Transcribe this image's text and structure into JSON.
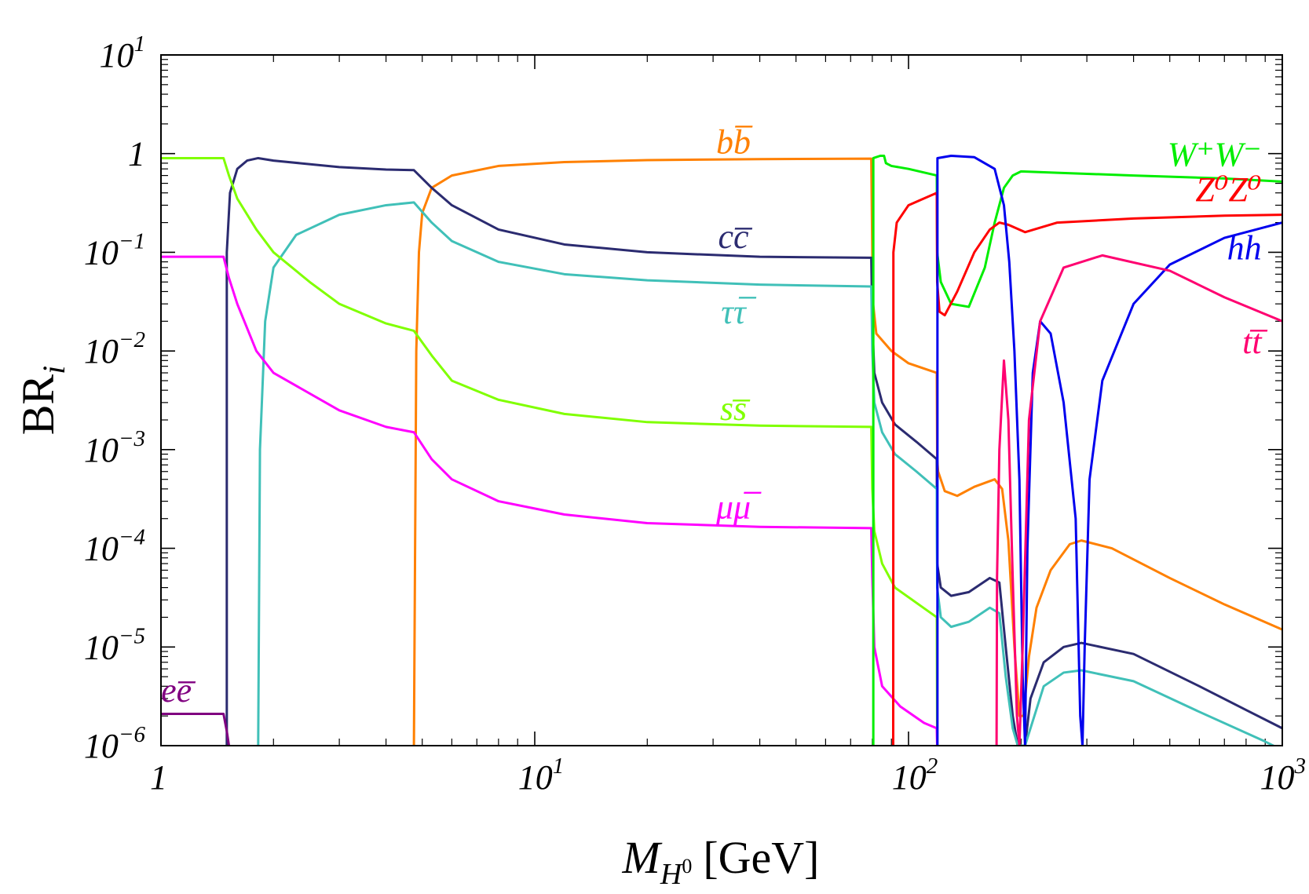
{
  "chart_data": {
    "type": "line",
    "xscale": "log",
    "yscale": "log",
    "xlim": [
      1,
      1000
    ],
    "ylim": [
      1e-06,
      10
    ],
    "xlabel": "M",
    "xlabel_sub": "H",
    "xlabel_supsub": "0",
    "xlabel_unit": "[GeV]",
    "ylabel": "BR",
    "ylabel_sub": "i",
    "x_ticks": [
      {
        "value": 1,
        "base": "1",
        "exp": ""
      },
      {
        "value": 10,
        "base": "10",
        "exp": "1"
      },
      {
        "value": 100,
        "base": "10",
        "exp": "2"
      },
      {
        "value": 1000,
        "base": "10",
        "exp": "3"
      }
    ],
    "y_ticks": [
      {
        "value": 10,
        "base": "10",
        "exp": "1"
      },
      {
        "value": 1,
        "base": "1",
        "exp": ""
      },
      {
        "value": 0.1,
        "base": "10",
        "exp": "−1"
      },
      {
        "value": 0.01,
        "base": "10",
        "exp": "−2"
      },
      {
        "value": 0.001,
        "base": "10",
        "exp": "−3"
      },
      {
        "value": 0.0001,
        "base": "10",
        "exp": "−4"
      },
      {
        "value": 1e-05,
        "base": "10",
        "exp": "−5"
      },
      {
        "value": 1e-06,
        "base": "10",
        "exp": "−6"
      }
    ],
    "series": [
      {
        "name": "bb",
        "label": "bb̅",
        "label_base": "bb",
        "label_pos": [
          34,
          1.0
        ],
        "color": "#ff8000",
        "points": [
          [
            4.75,
            1e-06
          ],
          [
            4.82,
            0.01
          ],
          [
            4.9,
            0.1
          ],
          [
            5.0,
            0.25
          ],
          [
            5.3,
            0.45
          ],
          [
            6,
            0.6
          ],
          [
            8,
            0.75
          ],
          [
            12,
            0.82
          ],
          [
            20,
            0.86
          ],
          [
            40,
            0.88
          ],
          [
            79.5,
            0.89
          ],
          [
            80.0,
            0.1
          ],
          [
            80.4,
            0.03
          ],
          [
            82,
            0.015
          ],
          [
            90,
            0.01
          ],
          [
            100,
            0.0075
          ],
          [
            119,
            0.006
          ],
          [
            119.3,
            0.0008
          ],
          [
            120,
            0.0006
          ],
          [
            125,
            0.00038
          ],
          [
            135,
            0.00034
          ],
          [
            150,
            0.00042
          ],
          [
            170,
            0.0005
          ],
          [
            178,
            0.0004
          ],
          [
            185,
            0.00012
          ],
          [
            192,
            1e-05
          ],
          [
            198,
            2e-06
          ],
          [
            203,
            2e-06
          ],
          [
            210,
            8e-06
          ],
          [
            220,
            2.5e-05
          ],
          [
            240,
            6e-05
          ],
          [
            270,
            0.00011
          ],
          [
            290,
            0.00012
          ],
          [
            350,
            0.0001
          ],
          [
            500,
            5e-05
          ],
          [
            700,
            2.7e-05
          ],
          [
            1000,
            1.5e-05
          ]
        ]
      },
      {
        "name": "cc",
        "label": "cc̅",
        "label_base": "cc",
        "label_pos": [
          34,
          0.11
        ],
        "color": "#2b2b70",
        "points": [
          [
            1.5,
            1e-06
          ],
          [
            1.5,
            0.1
          ],
          [
            1.53,
            0.4
          ],
          [
            1.6,
            0.7
          ],
          [
            1.7,
            0.85
          ],
          [
            1.82,
            0.9
          ],
          [
            2,
            0.85
          ],
          [
            3,
            0.73
          ],
          [
            4.0,
            0.69
          ],
          [
            4.75,
            0.68
          ],
          [
            5.3,
            0.45
          ],
          [
            6,
            0.3
          ],
          [
            8,
            0.17
          ],
          [
            12,
            0.12
          ],
          [
            20,
            0.1
          ],
          [
            40,
            0.09
          ],
          [
            79.5,
            0.088
          ],
          [
            80,
            0.02
          ],
          [
            81,
            0.006
          ],
          [
            85,
            0.003
          ],
          [
            92,
            0.0018
          ],
          [
            105,
            0.0012
          ],
          [
            119,
            0.0008
          ],
          [
            119.3,
            7e-05
          ],
          [
            122,
            4e-05
          ],
          [
            130,
            3.3e-05
          ],
          [
            145,
            3.6e-05
          ],
          [
            165,
            5e-05
          ],
          [
            175,
            4.5e-05
          ],
          [
            182,
            1e-05
          ],
          [
            190,
            2e-06
          ],
          [
            196,
            1e-06
          ],
          [
            205,
            1e-06
          ],
          [
            212,
            3e-06
          ],
          [
            230,
            7e-06
          ],
          [
            260,
            1e-05
          ],
          [
            290,
            1.1e-05
          ],
          [
            400,
            8.5e-06
          ],
          [
            600,
            4e-06
          ],
          [
            800,
            2.3e-06
          ],
          [
            1000,
            1.5e-06
          ]
        ]
      },
      {
        "name": "tautau",
        "label": "ττ̅",
        "label_base": "ττ",
        "label_pos": [
          34,
          0.019
        ],
        "color": "#40c0b8",
        "points": [
          [
            1.82,
            1e-06
          ],
          [
            1.84,
            0.001
          ],
          [
            1.9,
            0.02
          ],
          [
            2,
            0.07
          ],
          [
            2.3,
            0.15
          ],
          [
            3,
            0.24
          ],
          [
            4.0,
            0.3
          ],
          [
            4.75,
            0.32
          ],
          [
            5.3,
            0.2
          ],
          [
            6,
            0.13
          ],
          [
            8,
            0.08
          ],
          [
            12,
            0.06
          ],
          [
            20,
            0.052
          ],
          [
            40,
            0.047
          ],
          [
            79.5,
            0.045
          ],
          [
            80,
            0.01
          ],
          [
            81,
            0.003
          ],
          [
            85,
            0.0015
          ],
          [
            92,
            0.0009
          ],
          [
            105,
            0.0006
          ],
          [
            119,
            0.0004
          ],
          [
            119.3,
            4e-05
          ],
          [
            122,
            2e-05
          ],
          [
            130,
            1.6e-05
          ],
          [
            145,
            1.8e-05
          ],
          [
            165,
            2.5e-05
          ],
          [
            175,
            2.2e-05
          ],
          [
            182,
            5e-06
          ],
          [
            190,
            1.5e-06
          ],
          [
            196,
            1e-06
          ],
          [
            205,
            1e-06
          ],
          [
            212,
            1.5e-06
          ],
          [
            230,
            4e-06
          ],
          [
            260,
            5.5e-06
          ],
          [
            290,
            5.8e-06
          ],
          [
            400,
            4.5e-06
          ],
          [
            600,
            2.2e-06
          ],
          [
            900,
            1.1e-06
          ],
          [
            1000,
            9e-07
          ]
        ]
      },
      {
        "name": "ss",
        "label": "ss̅",
        "label_base": "ss",
        "label_pos": [
          34,
          0.002
        ],
        "color": "#80ff00",
        "points": [
          [
            1,
            0.9
          ],
          [
            1.47,
            0.9
          ],
          [
            1.52,
            0.6
          ],
          [
            1.6,
            0.35
          ],
          [
            1.8,
            0.17
          ],
          [
            2,
            0.1
          ],
          [
            2.5,
            0.05
          ],
          [
            3,
            0.03
          ],
          [
            4.0,
            0.019
          ],
          [
            4.75,
            0.016
          ],
          [
            5.3,
            0.009
          ],
          [
            6,
            0.005
          ],
          [
            8,
            0.0032
          ],
          [
            12,
            0.0023
          ],
          [
            20,
            0.0019
          ],
          [
            40,
            0.00175
          ],
          [
            79.5,
            0.0017
          ],
          [
            80,
            0.0004
          ],
          [
            81,
            0.00015
          ],
          [
            85,
            7e-05
          ],
          [
            92,
            4e-05
          ],
          [
            105,
            2.8e-05
          ],
          [
            119,
            2e-05
          ],
          [
            119.3,
            1e-06
          ]
        ]
      },
      {
        "name": "mumu",
        "label": "μμ̅",
        "label_base": "μμ",
        "label_pos": [
          34,
          0.0002
        ],
        "color": "#ff00ff",
        "points": [
          [
            1,
            0.09
          ],
          [
            1.47,
            0.09
          ],
          [
            1.52,
            0.055
          ],
          [
            1.6,
            0.03
          ],
          [
            1.8,
            0.01
          ],
          [
            2,
            0.006
          ],
          [
            3,
            0.0025
          ],
          [
            4.0,
            0.0017
          ],
          [
            4.75,
            0.0015
          ],
          [
            5.3,
            0.0008
          ],
          [
            6,
            0.0005
          ],
          [
            8,
            0.0003
          ],
          [
            12,
            0.00022
          ],
          [
            20,
            0.00018
          ],
          [
            40,
            0.000165
          ],
          [
            79.5,
            0.00016
          ],
          [
            80,
            5e-05
          ],
          [
            81,
            1e-05
          ],
          [
            85,
            4e-06
          ],
          [
            95,
            2.5e-06
          ],
          [
            110,
            1.7e-06
          ],
          [
            119,
            1.5e-06
          ],
          [
            119.3,
            1e-06
          ]
        ]
      },
      {
        "name": "ee",
        "label": "ee̅",
        "label_base": "ee",
        "label_pos": [
          1.1,
          2.8e-06
        ],
        "color": "#800080",
        "points": [
          [
            1,
            2.1e-06
          ],
          [
            1.47,
            2.1e-06
          ],
          [
            1.5,
            1.4e-06
          ],
          [
            1.52,
            1e-06
          ]
        ]
      },
      {
        "name": "WW",
        "label": "W⁺W⁻",
        "label_base": "W⁺W⁻",
        "label_pos": [
          880,
          0.75
        ],
        "color": "#00ee00",
        "points": [
          [
            80.5,
            1e-06
          ],
          [
            80.5,
            0.9
          ],
          [
            84,
            0.95
          ],
          [
            86,
            0.95
          ],
          [
            87,
            0.8
          ],
          [
            90,
            0.75
          ],
          [
            100,
            0.7
          ],
          [
            119,
            0.6
          ],
          [
            119.3,
            0.1
          ],
          [
            122,
            0.05
          ],
          [
            130,
            0.03
          ],
          [
            145,
            0.028
          ],
          [
            160,
            0.07
          ],
          [
            170,
            0.2
          ],
          [
            180,
            0.45
          ],
          [
            190,
            0.6
          ],
          [
            200,
            0.66
          ],
          [
            250,
            0.64
          ],
          [
            400,
            0.6
          ],
          [
            700,
            0.56
          ],
          [
            1000,
            0.52
          ]
        ]
      },
      {
        "name": "ZZ",
        "label": "Z⁰Z⁰",
        "label_base": "Z⁰Z⁰",
        "label_pos": [
          880,
          0.33
        ],
        "color": "#ff0000",
        "points": [
          [
            91,
            1e-06
          ],
          [
            91.1,
            0.1
          ],
          [
            93,
            0.2
          ],
          [
            100,
            0.3
          ],
          [
            119,
            0.4
          ],
          [
            119.3,
            0.05
          ],
          [
            121,
            0.025
          ],
          [
            125,
            0.023
          ],
          [
            135,
            0.04
          ],
          [
            150,
            0.1
          ],
          [
            165,
            0.17
          ],
          [
            175,
            0.2
          ],
          [
            185,
            0.19
          ],
          [
            205,
            0.16
          ],
          [
            250,
            0.2
          ],
          [
            400,
            0.22
          ],
          [
            700,
            0.235
          ],
          [
            1000,
            0.24
          ]
        ]
      },
      {
        "name": "hh",
        "label": "hh",
        "label_base": "hh",
        "label_pos": [
          880,
          0.085
        ],
        "color": "#0000ee",
        "points": [
          [
            119.5,
            1e-06
          ],
          [
            119.5,
            0.9
          ],
          [
            130,
            0.95
          ],
          [
            150,
            0.92
          ],
          [
            170,
            0.7
          ],
          [
            180,
            0.3
          ],
          [
            186,
            0.08
          ],
          [
            192,
            0.01
          ],
          [
            198,
            0.0005
          ],
          [
            202,
            5e-06
          ],
          [
            205,
            1e-06
          ],
          [
            208,
            0.0001
          ],
          [
            215,
            0.006
          ],
          [
            225,
            0.02
          ],
          [
            240,
            0.015
          ],
          [
            260,
            0.003
          ],
          [
            280,
            0.0002
          ],
          [
            288,
            2e-06
          ],
          [
            292,
            1e-06
          ],
          [
            296,
            1e-05
          ],
          [
            305,
            0.0005
          ],
          [
            330,
            0.005
          ],
          [
            400,
            0.03
          ],
          [
            500,
            0.075
          ],
          [
            700,
            0.14
          ],
          [
            1000,
            0.2
          ]
        ]
      },
      {
        "name": "tt",
        "label": "tt̅",
        "label_base": "tt",
        "label_pos": [
          880,
          0.0095
        ],
        "color": "#ff0070",
        "points": [
          [
            172,
            1e-06
          ],
          [
            172.5,
            5e-05
          ],
          [
            175,
            0.001
          ],
          [
            180,
            0.008
          ],
          [
            185,
            0.002
          ],
          [
            190,
            5e-05
          ],
          [
            195,
            2e-06
          ],
          [
            198,
            1e-06
          ],
          [
            202,
            1e-05
          ],
          [
            210,
            0.002
          ],
          [
            225,
            0.02
          ],
          [
            260,
            0.07
          ],
          [
            330,
            0.093
          ],
          [
            500,
            0.065
          ],
          [
            700,
            0.035
          ],
          [
            1000,
            0.02
          ]
        ]
      }
    ]
  }
}
